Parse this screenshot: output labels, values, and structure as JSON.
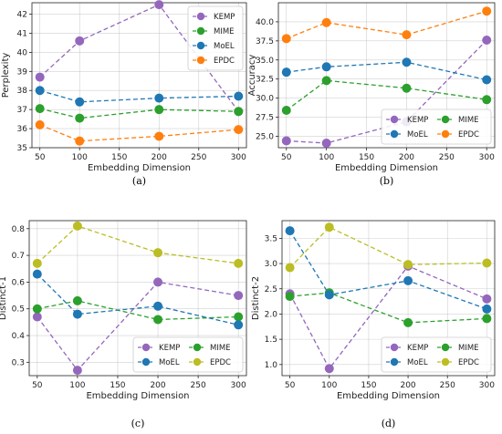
{
  "chart_data": [
    {
      "type": "line",
      "caption": "(a)",
      "x": [
        50,
        100,
        200,
        300
      ],
      "xlabel": "Embedding Dimension",
      "ylabel": "Perplexity",
      "xlim": [
        40,
        310
      ],
      "ylim": [
        35,
        42.6
      ],
      "xticks": [
        50,
        100,
        150,
        200,
        250,
        300
      ],
      "yticks": [
        35,
        36,
        37,
        38,
        39,
        40,
        41,
        42
      ],
      "legend": "top-right",
      "legend_cols": 1,
      "series": [
        {
          "name": "KEMP",
          "color": "#9467bd",
          "values": [
            38.7,
            40.6,
            42.5,
            36.9
          ]
        },
        {
          "name": "MIME",
          "color": "#2ca02c",
          "values": [
            37.05,
            36.55,
            37.0,
            36.9
          ]
        },
        {
          "name": "MoEL",
          "color": "#1f77b4",
          "values": [
            38.0,
            37.4,
            37.6,
            37.7
          ]
        },
        {
          "name": "EPDC",
          "color": "#ff7f0e",
          "values": [
            36.2,
            35.35,
            35.6,
            35.95
          ]
        }
      ]
    },
    {
      "type": "line",
      "caption": "(b)",
      "x": [
        50,
        100,
        200,
        300
      ],
      "xlabel": "Embedding Dimension",
      "ylabel": "Accuracy",
      "xlim": [
        40,
        310
      ],
      "ylim": [
        23.5,
        42.5
      ],
      "xticks": [
        50,
        100,
        150,
        200,
        250,
        300
      ],
      "yticks": [
        25.0,
        27.5,
        30.0,
        32.5,
        35.0,
        37.5,
        40.0
      ],
      "ytick_decimals": 1,
      "legend": "bottom-right",
      "legend_cols": 2,
      "series": [
        {
          "name": "KEMP",
          "color": "#9467bd",
          "values": [
            24.4,
            24.1,
            26.9,
            37.6
          ]
        },
        {
          "name": "MIME",
          "color": "#2ca02c",
          "values": [
            28.4,
            32.3,
            31.3,
            29.8
          ]
        },
        {
          "name": "MoEL",
          "color": "#1f77b4",
          "values": [
            33.4,
            34.1,
            34.7,
            32.4
          ]
        },
        {
          "name": "EPDC",
          "color": "#ff7f0e",
          "values": [
            37.8,
            39.9,
            38.3,
            41.4
          ]
        }
      ]
    },
    {
      "type": "line",
      "caption": "(c)",
      "x": [
        50,
        100,
        200,
        300
      ],
      "xlabel": "Embedding Dimension",
      "ylabel": "Distinct-1",
      "xlim": [
        40,
        310
      ],
      "ylim": [
        0.25,
        0.83
      ],
      "xticks": [
        50,
        100,
        150,
        200,
        250,
        300
      ],
      "yticks": [
        0.3,
        0.4,
        0.5,
        0.6,
        0.7,
        0.8
      ],
      "ytick_decimals": 1,
      "legend": "bottom-right",
      "legend_cols": 2,
      "series": [
        {
          "name": "KEMP",
          "color": "#9467bd",
          "values": [
            0.47,
            0.27,
            0.6,
            0.55
          ]
        },
        {
          "name": "MIME",
          "color": "#2ca02c",
          "values": [
            0.5,
            0.53,
            0.46,
            0.47
          ]
        },
        {
          "name": "MoEL",
          "color": "#1f77b4",
          "values": [
            0.63,
            0.48,
            0.51,
            0.44
          ]
        },
        {
          "name": "EPDC",
          "color": "#bcbd22",
          "values": [
            0.67,
            0.81,
            0.71,
            0.67
          ]
        }
      ]
    },
    {
      "type": "line",
      "caption": "(d)",
      "x": [
        50,
        100,
        200,
        300
      ],
      "xlabel": "Embedding Dimension",
      "ylabel": "Distinct-2",
      "xlim": [
        40,
        310
      ],
      "ylim": [
        0.78,
        3.85
      ],
      "xticks": [
        50,
        100,
        150,
        200,
        250,
        300
      ],
      "yticks": [
        1.0,
        1.5,
        2.0,
        2.5,
        3.0,
        3.5
      ],
      "ytick_decimals": 1,
      "legend": "bottom-right",
      "legend_cols": 2,
      "series": [
        {
          "name": "KEMP",
          "color": "#9467bd",
          "values": [
            2.4,
            0.92,
            2.95,
            2.3
          ]
        },
        {
          "name": "MIME",
          "color": "#2ca02c",
          "values": [
            2.35,
            2.42,
            1.83,
            1.91
          ]
        },
        {
          "name": "MoEL",
          "color": "#1f77b4",
          "values": [
            3.65,
            2.38,
            2.66,
            2.1
          ]
        },
        {
          "name": "EPDC",
          "color": "#bcbd22",
          "values": [
            2.92,
            3.72,
            2.98,
            3.01
          ]
        }
      ]
    }
  ]
}
